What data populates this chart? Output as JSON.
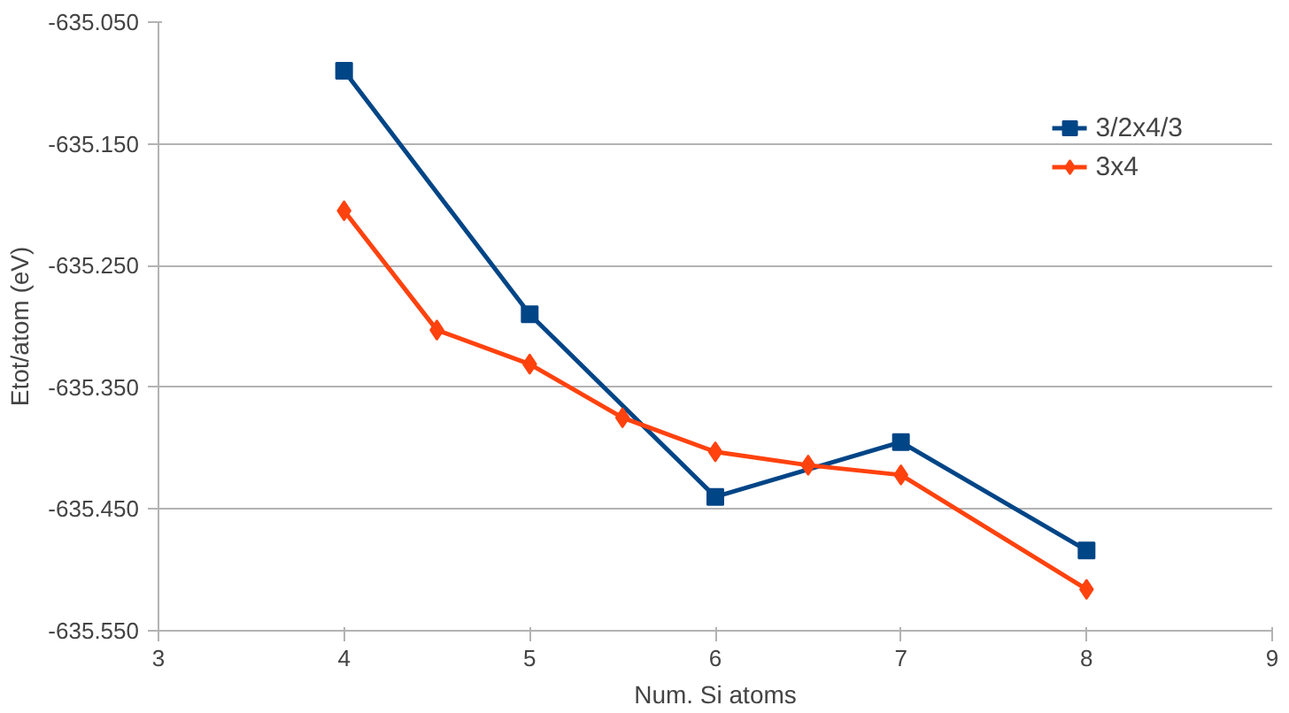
{
  "chart_data": {
    "type": "line",
    "xlabel": "Num. Si atoms",
    "ylabel": "Etot/atom (eV)",
    "xlim": [
      3,
      9
    ],
    "xticks": [
      3,
      4,
      5,
      6,
      7,
      8,
      9
    ],
    "ylim": [
      -635.55,
      -635.05
    ],
    "yticks": [
      {
        "value": -635.55,
        "label": "-635.550"
      },
      {
        "value": -635.45,
        "label": "-635.450"
      },
      {
        "value": -635.35,
        "label": "-635.350"
      },
      {
        "value": -635.25,
        "label": "-635.250"
      },
      {
        "value": -635.15,
        "label": "-635.150"
      },
      {
        "value": -635.05,
        "label": "-635.050"
      }
    ],
    "grid": "y",
    "legend": "top right",
    "series": [
      {
        "name": "3/2x4/3",
        "color": "#004586",
        "marker": "square",
        "x": [
          4,
          5,
          6,
          7,
          8
        ],
        "values": [
          -635.09,
          -635.29,
          -635.44,
          -635.395,
          -635.484
        ]
      },
      {
        "name": "3x4",
        "color": "#ff420e",
        "marker": "diamond",
        "x": [
          4,
          4.5,
          5,
          5.5,
          6,
          6.5,
          7,
          8
        ],
        "values": [
          -635.205,
          -635.303,
          -635.331,
          -635.375,
          -635.403,
          -635.414,
          -635.422,
          -635.516
        ]
      }
    ]
  }
}
